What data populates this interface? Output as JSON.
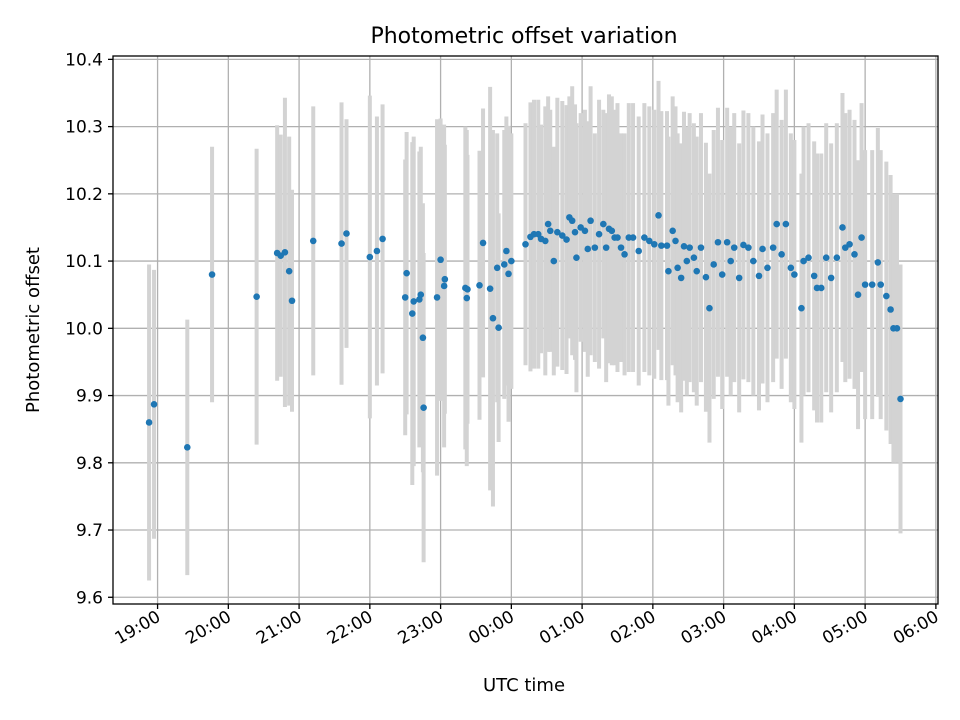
{
  "chart_data": {
    "type": "scatter",
    "title": "Photometric offset variation",
    "xlabel": "UTC time",
    "ylabel": "Photometric offset",
    "grid": true,
    "ylim": [
      9.59,
      10.405
    ],
    "xlim_hours": [
      18.37,
      30.03
    ],
    "y_ticks": [
      {
        "value": 9.6,
        "label": "9.6"
      },
      {
        "value": 9.7,
        "label": "9.7"
      },
      {
        "value": 9.8,
        "label": "9.8"
      },
      {
        "value": 9.9,
        "label": "9.9"
      },
      {
        "value": 10.0,
        "label": "10.0"
      },
      {
        "value": 10.1,
        "label": "10.1"
      },
      {
        "value": 10.2,
        "label": "10.2"
      },
      {
        "value": 10.3,
        "label": "10.3"
      },
      {
        "value": 10.4,
        "label": "10.4"
      }
    ],
    "x_ticks": [
      {
        "hour": 19,
        "label": "19:00"
      },
      {
        "hour": 20,
        "label": "20:00"
      },
      {
        "hour": 21,
        "label": "21:00"
      },
      {
        "hour": 22,
        "label": "22:00"
      },
      {
        "hour": 23,
        "label": "23:00"
      },
      {
        "hour": 24,
        "label": "00:00"
      },
      {
        "hour": 25,
        "label": "01:00"
      },
      {
        "hour": 26,
        "label": "02:00"
      },
      {
        "hour": 27,
        "label": "03:00"
      },
      {
        "hour": 28,
        "label": "04:00"
      },
      {
        "hour": 29,
        "label": "05:00"
      },
      {
        "hour": 30,
        "label": "06:00"
      }
    ],
    "colors": {
      "point": "#1f77b4",
      "errorbar": "#d3d3d3",
      "grid": "#b0b0b0"
    },
    "points": [
      [
        18.88,
        9.86,
        0.235
      ],
      [
        18.95,
        9.887,
        0.2
      ],
      [
        19.42,
        9.823,
        0.19
      ],
      [
        19.77,
        10.08,
        0.19
      ],
      [
        20.4,
        10.047,
        0.22
      ],
      [
        20.69,
        10.112,
        0.19
      ],
      [
        20.74,
        10.108,
        0.18
      ],
      [
        20.8,
        10.113,
        0.23
      ],
      [
        20.86,
        10.085,
        0.2
      ],
      [
        20.9,
        10.041,
        0.165
      ],
      [
        21.2,
        10.13,
        0.2
      ],
      [
        21.6,
        10.126,
        0.21
      ],
      [
        21.67,
        10.141,
        0.17
      ],
      [
        22.0,
        10.106,
        0.24
      ],
      [
        22.1,
        10.115,
        0.2
      ],
      [
        22.18,
        10.133,
        0.2
      ],
      [
        22.5,
        10.046,
        0.205
      ],
      [
        22.52,
        10.082,
        0.21
      ],
      [
        22.6,
        10.022,
        0.255
      ],
      [
        22.62,
        10.04,
        0.245
      ],
      [
        22.7,
        10.043,
        0.22
      ],
      [
        22.72,
        10.05,
        0.22
      ],
      [
        22.75,
        9.986,
        0.2
      ],
      [
        22.76,
        9.882,
        0.23
      ],
      [
        22.95,
        10.046,
        0.265
      ],
      [
        23.0,
        10.102,
        0.21
      ],
      [
        23.05,
        10.063,
        0.24
      ],
      [
        23.06,
        10.073,
        0.2
      ],
      [
        23.35,
        10.06,
        0.24
      ],
      [
        23.37,
        10.045,
        0.25
      ],
      [
        23.38,
        10.058,
        0.2
      ],
      [
        23.55,
        10.064,
        0.2
      ],
      [
        23.6,
        10.127,
        0.2
      ],
      [
        23.7,
        10.059,
        0.3
      ],
      [
        23.74,
        10.015,
        0.28
      ],
      [
        23.8,
        10.09,
        0.2
      ],
      [
        23.82,
        10.001,
        0.17
      ],
      [
        23.9,
        10.095,
        0.2
      ],
      [
        23.93,
        10.115,
        0.2
      ],
      [
        23.96,
        10.081,
        0.22
      ],
      [
        24.0,
        10.1,
        0.19
      ],
      [
        24.2,
        10.125,
        0.18
      ],
      [
        24.27,
        10.136,
        0.2
      ],
      [
        24.32,
        10.14,
        0.2
      ],
      [
        24.38,
        10.14,
        0.2
      ],
      [
        24.42,
        10.133,
        0.17
      ],
      [
        24.48,
        10.13,
        0.2
      ],
      [
        24.52,
        10.155,
        0.19
      ],
      [
        24.55,
        10.145,
        0.18
      ],
      [
        24.6,
        10.1,
        0.17
      ],
      [
        24.65,
        10.143,
        0.2
      ],
      [
        24.72,
        10.138,
        0.2
      ],
      [
        24.78,
        10.132,
        0.2
      ],
      [
        24.82,
        10.165,
        0.18
      ],
      [
        24.86,
        10.16,
        0.2
      ],
      [
        24.9,
        10.143,
        0.19
      ],
      [
        24.92,
        10.105,
        0.2
      ],
      [
        24.98,
        10.15,
        0.17
      ],
      [
        25.04,
        10.145,
        0.18
      ],
      [
        25.08,
        10.118,
        0.19
      ],
      [
        25.12,
        10.16,
        0.2
      ],
      [
        25.18,
        10.12,
        0.17
      ],
      [
        25.24,
        10.14,
        0.2
      ],
      [
        25.3,
        10.155,
        0.17
      ],
      [
        25.34,
        10.12,
        0.2
      ],
      [
        25.38,
        10.148,
        0.2
      ],
      [
        25.42,
        10.145,
        0.2
      ],
      [
        25.46,
        10.135,
        0.19
      ],
      [
        25.5,
        10.135,
        0.2
      ],
      [
        25.55,
        10.12,
        0.17
      ],
      [
        25.6,
        10.11,
        0.18
      ],
      [
        25.66,
        10.135,
        0.2
      ],
      [
        25.72,
        10.135,
        0.2
      ],
      [
        25.8,
        10.115,
        0.2
      ],
      [
        25.88,
        10.135,
        0.2
      ],
      [
        25.95,
        10.13,
        0.2
      ],
      [
        26.02,
        10.125,
        0.2
      ],
      [
        26.08,
        10.168,
        0.2
      ],
      [
        26.12,
        10.123,
        0.2
      ],
      [
        26.2,
        10.123,
        0.2
      ],
      [
        26.22,
        10.085,
        0.2
      ],
      [
        26.28,
        10.145,
        0.2
      ],
      [
        26.32,
        10.13,
        0.2
      ],
      [
        26.35,
        10.09,
        0.2
      ],
      [
        26.4,
        10.075,
        0.2
      ],
      [
        26.44,
        10.122,
        0.2
      ],
      [
        26.48,
        10.1,
        0.2
      ],
      [
        26.52,
        10.12,
        0.2
      ],
      [
        26.58,
        10.105,
        0.2
      ],
      [
        26.62,
        10.085,
        0.2
      ],
      [
        26.68,
        10.12,
        0.2
      ],
      [
        26.75,
        10.076,
        0.2
      ],
      [
        26.8,
        10.03,
        0.2
      ],
      [
        26.86,
        10.095,
        0.2
      ],
      [
        26.92,
        10.128,
        0.2
      ],
      [
        26.98,
        10.08,
        0.2
      ],
      [
        27.05,
        10.128,
        0.2
      ],
      [
        27.1,
        10.1,
        0.2
      ],
      [
        27.15,
        10.12,
        0.2
      ],
      [
        27.22,
        10.075,
        0.2
      ],
      [
        27.28,
        10.124,
        0.2
      ],
      [
        27.35,
        10.12,
        0.2
      ],
      [
        27.42,
        10.1,
        0.2
      ],
      [
        27.5,
        10.078,
        0.2
      ],
      [
        27.55,
        10.118,
        0.2
      ],
      [
        27.62,
        10.09,
        0.2
      ],
      [
        27.7,
        10.12,
        0.2
      ],
      [
        27.75,
        10.155,
        0.2
      ],
      [
        27.82,
        10.11,
        0.2
      ],
      [
        27.88,
        10.155,
        0.2
      ],
      [
        27.95,
        10.09,
        0.2
      ],
      [
        28.0,
        10.08,
        0.2
      ],
      [
        28.1,
        10.03,
        0.2
      ],
      [
        28.13,
        10.1,
        0.2
      ],
      [
        28.2,
        10.105,
        0.2
      ],
      [
        28.28,
        10.078,
        0.2
      ],
      [
        28.32,
        10.06,
        0.2
      ],
      [
        28.38,
        10.06,
        0.2
      ],
      [
        28.45,
        10.105,
        0.2
      ],
      [
        28.52,
        10.075,
        0.2
      ],
      [
        28.6,
        10.105,
        0.2
      ],
      [
        28.68,
        10.15,
        0.2
      ],
      [
        28.72,
        10.12,
        0.2
      ],
      [
        28.78,
        10.125,
        0.2
      ],
      [
        28.85,
        10.11,
        0.2
      ],
      [
        28.9,
        10.05,
        0.2
      ],
      [
        28.95,
        10.135,
        0.2
      ],
      [
        29.0,
        10.065,
        0.2
      ],
      [
        29.1,
        10.065,
        0.2
      ],
      [
        29.18,
        10.098,
        0.2
      ],
      [
        29.22,
        10.065,
        0.2
      ],
      [
        29.3,
        10.048,
        0.2
      ],
      [
        29.36,
        10.028,
        0.2
      ],
      [
        29.4,
        10.0,
        0.2
      ],
      [
        29.45,
        10.0,
        0.2
      ],
      [
        29.5,
        9.895,
        0.2
      ]
    ]
  }
}
